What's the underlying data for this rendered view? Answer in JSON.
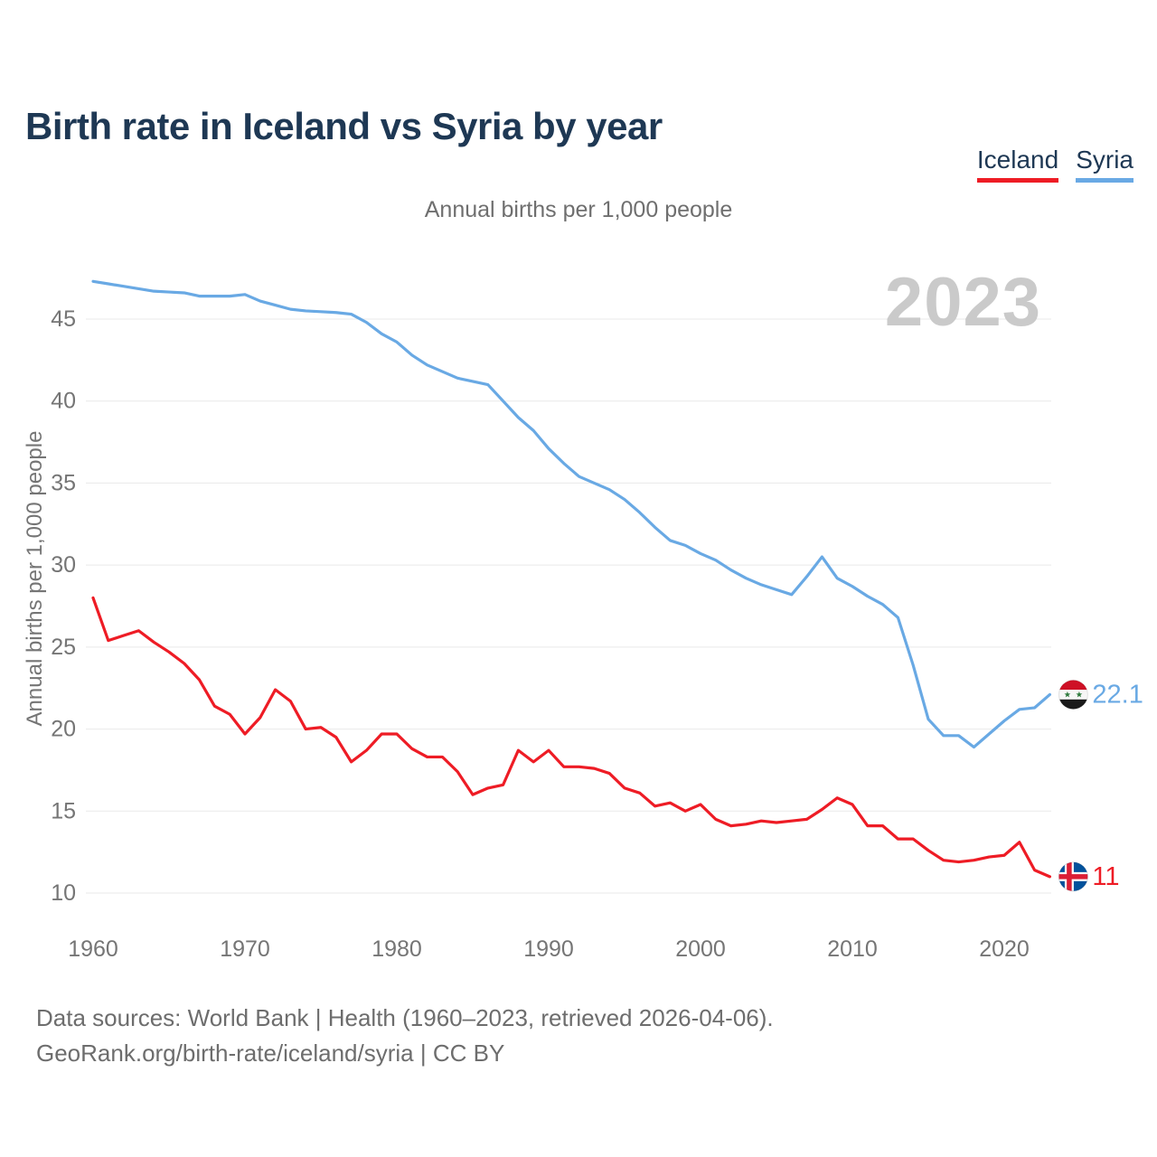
{
  "header": {
    "title": "Birth rate in Iceland vs Syria by year",
    "subtitle": "Annual births per 1,000 people"
  },
  "legend": [
    {
      "label": "Iceland",
      "color": "#ee1c25"
    },
    {
      "label": "Syria",
      "color": "#69a9e4"
    }
  ],
  "watermark": "2023",
  "footer": {
    "line1": "Data sources: World Bank | Health (1960–2023, retrieved 2026-04-06).",
    "line2": "GeoRank.org/birth-rate/iceland/syria | CC BY"
  },
  "colors": {
    "title_navy": "#1e3854",
    "iceland_red": "#ee1c25",
    "syria_blue": "#69a9e4",
    "axis_gray": "#757575",
    "gridline": "#e9e9e9",
    "watermark_gray": "#cacaca",
    "footer_gray": "#6d6d6d"
  },
  "chart_data": {
    "type": "line",
    "title": "Birth rate in Iceland vs Syria by year",
    "xlabel": "",
    "ylabel": "Annual births per 1,000 people",
    "ylim": [
      9,
      48
    ],
    "grid": true,
    "legend_position": "top-right",
    "watermark": "2023",
    "yticks": [
      45,
      40,
      35,
      30,
      25,
      20,
      15,
      10
    ],
    "xticks": [
      1960,
      1970,
      1980,
      1990,
      2000,
      2010,
      2020
    ],
    "x": [
      1960,
      1961,
      1962,
      1963,
      1964,
      1965,
      1966,
      1967,
      1968,
      1969,
      1970,
      1971,
      1972,
      1973,
      1974,
      1975,
      1976,
      1977,
      1978,
      1979,
      1980,
      1981,
      1982,
      1983,
      1984,
      1985,
      1986,
      1987,
      1988,
      1989,
      1990,
      1991,
      1992,
      1993,
      1994,
      1995,
      1996,
      1997,
      1998,
      1999,
      2000,
      2001,
      2002,
      2003,
      2004,
      2005,
      2006,
      2007,
      2008,
      2009,
      2010,
      2011,
      2012,
      2013,
      2014,
      2015,
      2016,
      2017,
      2018,
      2019,
      2020,
      2021,
      2022,
      2023
    ],
    "series": [
      {
        "name": "Iceland",
        "color": "#ee1c25",
        "end_label": "11",
        "end_value": 11,
        "values": [
          28.0,
          25.4,
          25.7,
          26.0,
          25.3,
          24.7,
          24.0,
          23.0,
          21.4,
          20.9,
          19.7,
          20.7,
          22.4,
          21.7,
          20.0,
          20.1,
          19.5,
          18.0,
          18.7,
          19.7,
          19.7,
          18.8,
          18.3,
          18.3,
          17.4,
          16.0,
          16.4,
          16.6,
          18.7,
          18.0,
          18.7,
          17.7,
          17.7,
          17.6,
          17.3,
          16.4,
          16.1,
          15.3,
          15.5,
          15.0,
          15.4,
          14.5,
          14.1,
          14.2,
          14.4,
          14.3,
          14.4,
          14.5,
          15.1,
          15.8,
          15.4,
          14.1,
          14.1,
          13.3,
          13.3,
          12.6,
          12.0,
          11.9,
          12.0,
          12.2,
          12.3,
          13.1,
          11.4,
          11.0
        ]
      },
      {
        "name": "Syria",
        "color": "#69a9e4",
        "end_label": "22.1",
        "end_value": 22.1,
        "values": [
          47.3,
          47.15,
          47.0,
          46.85,
          46.7,
          46.65,
          46.6,
          46.4,
          46.4,
          46.4,
          46.5,
          46.1,
          45.85,
          45.6,
          45.5,
          45.45,
          45.4,
          45.3,
          44.8,
          44.1,
          43.6,
          42.8,
          42.2,
          41.8,
          41.4,
          41.2,
          41.0,
          40.0,
          39.0,
          38.2,
          37.1,
          36.2,
          35.4,
          35.0,
          34.6,
          34.0,
          33.2,
          32.3,
          31.5,
          31.2,
          30.7,
          30.3,
          29.7,
          29.2,
          28.8,
          28.5,
          28.2,
          29.3,
          30.5,
          29.2,
          28.7,
          28.1,
          27.6,
          26.8,
          23.9,
          20.6,
          19.6,
          19.6,
          18.9,
          19.7,
          20.5,
          21.2,
          21.3,
          22.1
        ]
      }
    ]
  }
}
